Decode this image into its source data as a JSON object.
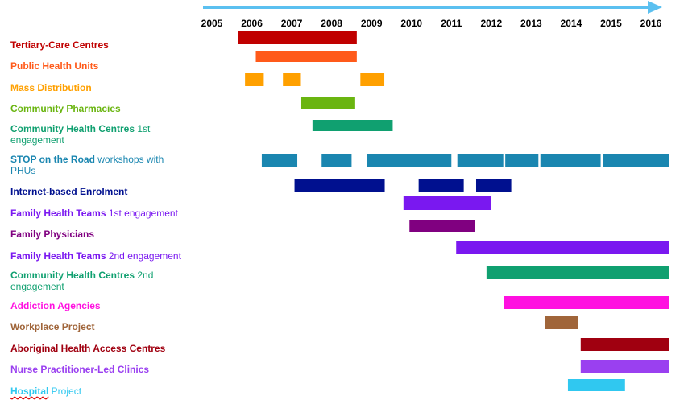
{
  "chart_data": {
    "type": "gantt",
    "x_axis": {
      "range": [
        2005,
        2016
      ],
      "ticks": [
        "2005",
        "2006",
        "2007",
        "2008",
        "2009",
        "2010",
        "2011",
        "2012",
        "2013",
        "2014",
        "2015",
        "2016"
      ]
    },
    "rows": [
      {
        "label": "Tertiary-Care Centres",
        "label_note": "",
        "color": "#C00000",
        "bars": [
          [
            2005.65,
            2008.63
          ]
        ]
      },
      {
        "label": "Public Health Units",
        "label_note": "",
        "color": "#FF5A1A",
        "bars": [
          [
            2006.1,
            2008.63
          ]
        ]
      },
      {
        "label": "Mass Distribution",
        "label_note": "",
        "color": "#FFA000",
        "bars": [
          [
            2005.83,
            2006.3
          ],
          [
            2006.78,
            2007.23
          ],
          [
            2008.72,
            2009.32
          ]
        ]
      },
      {
        "label": "Community  Pharmacies",
        "label_note": "",
        "color": "#6AB510",
        "bars": [
          [
            2007.24,
            2008.59
          ]
        ]
      },
      {
        "label": "Community  Health Centres",
        "label_note": " 1st engagement",
        "color": "#10A070",
        "bars": [
          [
            2007.52,
            2009.53
          ]
        ]
      },
      {
        "label": "STOP  on the Road",
        "label_note": " workshops with PHUs",
        "color": "#1A86B0",
        "bars": [
          [
            2006.25,
            2007.14
          ],
          [
            2007.75,
            2008.5
          ],
          [
            2008.88,
            2011.0
          ],
          [
            2011.15,
            2012.3
          ],
          [
            2012.35,
            2013.18
          ],
          [
            2013.23,
            2014.74
          ],
          [
            2014.79,
            2016.46
          ]
        ]
      },
      {
        "label": "Internet-based Enrolment",
        "label_note": "",
        "color": "#00108F",
        "bars": [
          [
            2007.07,
            2009.33
          ],
          [
            2010.18,
            2011.31
          ],
          [
            2011.62,
            2012.5
          ]
        ]
      },
      {
        "label": "Family  Health Teams",
        "label_note": " 1st engagement",
        "color": "#7A18F0",
        "bars": [
          [
            2009.8,
            2012.0
          ]
        ]
      },
      {
        "label": "Family  Physicians",
        "label_note": "",
        "color": "#800080",
        "bars": [
          [
            2009.95,
            2011.6
          ]
        ]
      },
      {
        "label": "Family  Health Teams",
        "label_note": " 2nd engagement",
        "color": "#7A18F0",
        "bars": [
          [
            2011.12,
            2016.46
          ]
        ]
      },
      {
        "label": "Community  Health Centres",
        "label_note": " 2nd engagement",
        "color": "#10A070",
        "bars": [
          [
            2011.88,
            2016.46
          ]
        ]
      },
      {
        "label": "Addiction  Agencies",
        "label_note": "",
        "color": "#FF10E0",
        "bars": [
          [
            2012.32,
            2016.46
          ]
        ]
      },
      {
        "label": "Workplace Project",
        "label_note": "",
        "color": "#A0653A",
        "bars": [
          [
            2013.35,
            2014.18
          ]
        ]
      },
      {
        "label": "Aboriginal  Health Access Centres",
        "label_note": "",
        "color": "#A00010",
        "bars": [
          [
            2014.24,
            2016.46
          ]
        ]
      },
      {
        "label": "Nurse Practitioner-Led Clinics",
        "label_note": "",
        "color": "#9A40F0",
        "bars": [
          [
            2014.24,
            2016.46
          ]
        ]
      },
      {
        "label": "Hospital",
        "label_note": " Project",
        "color": "#30C8F0",
        "bars": [
          [
            2013.92,
            2015.35
          ]
        ]
      }
    ],
    "arrow_color": "#5BC0F0"
  }
}
